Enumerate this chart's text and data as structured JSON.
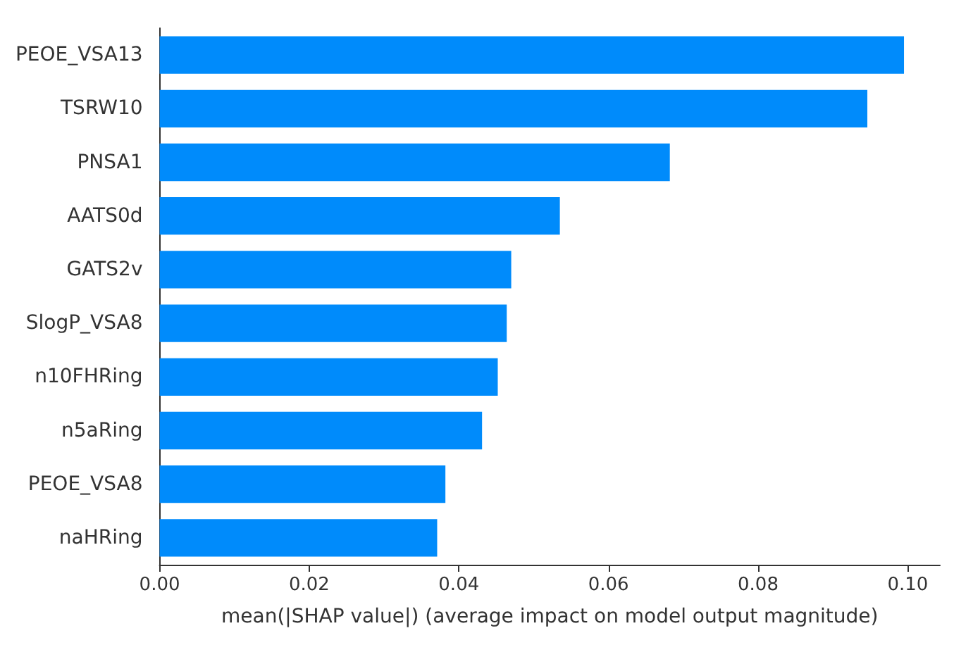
{
  "chart_data": {
    "type": "bar",
    "orientation": "horizontal",
    "xlabel": "mean(|SHAP value|) (average impact on model output magnitude)",
    "categories": [
      "PEOE_VSA13",
      "TSRW10",
      "PNSA1",
      "AATS0d",
      "GATS2v",
      "SlogP_VSA8",
      "n10FHRing",
      "n5aRing",
      "PEOE_VSA8",
      "naHRing"
    ],
    "values": [
      0.0995,
      0.0946,
      0.0682,
      0.0535,
      0.047,
      0.0464,
      0.0452,
      0.0431,
      0.0382,
      0.0371
    ],
    "color": "#008bfb",
    "xlim": [
      0,
      0.1043
    ],
    "xticks": [
      {
        "value": 0,
        "label": "0.00"
      },
      {
        "value": 0.02,
        "label": "0.02"
      },
      {
        "value": 0.04,
        "label": "0.04"
      },
      {
        "value": 0.06,
        "label": "0.06"
      },
      {
        "value": 0.08,
        "label": "0.08"
      },
      {
        "value": 0.1,
        "label": "0.10"
      }
    ],
    "grid": false
  }
}
